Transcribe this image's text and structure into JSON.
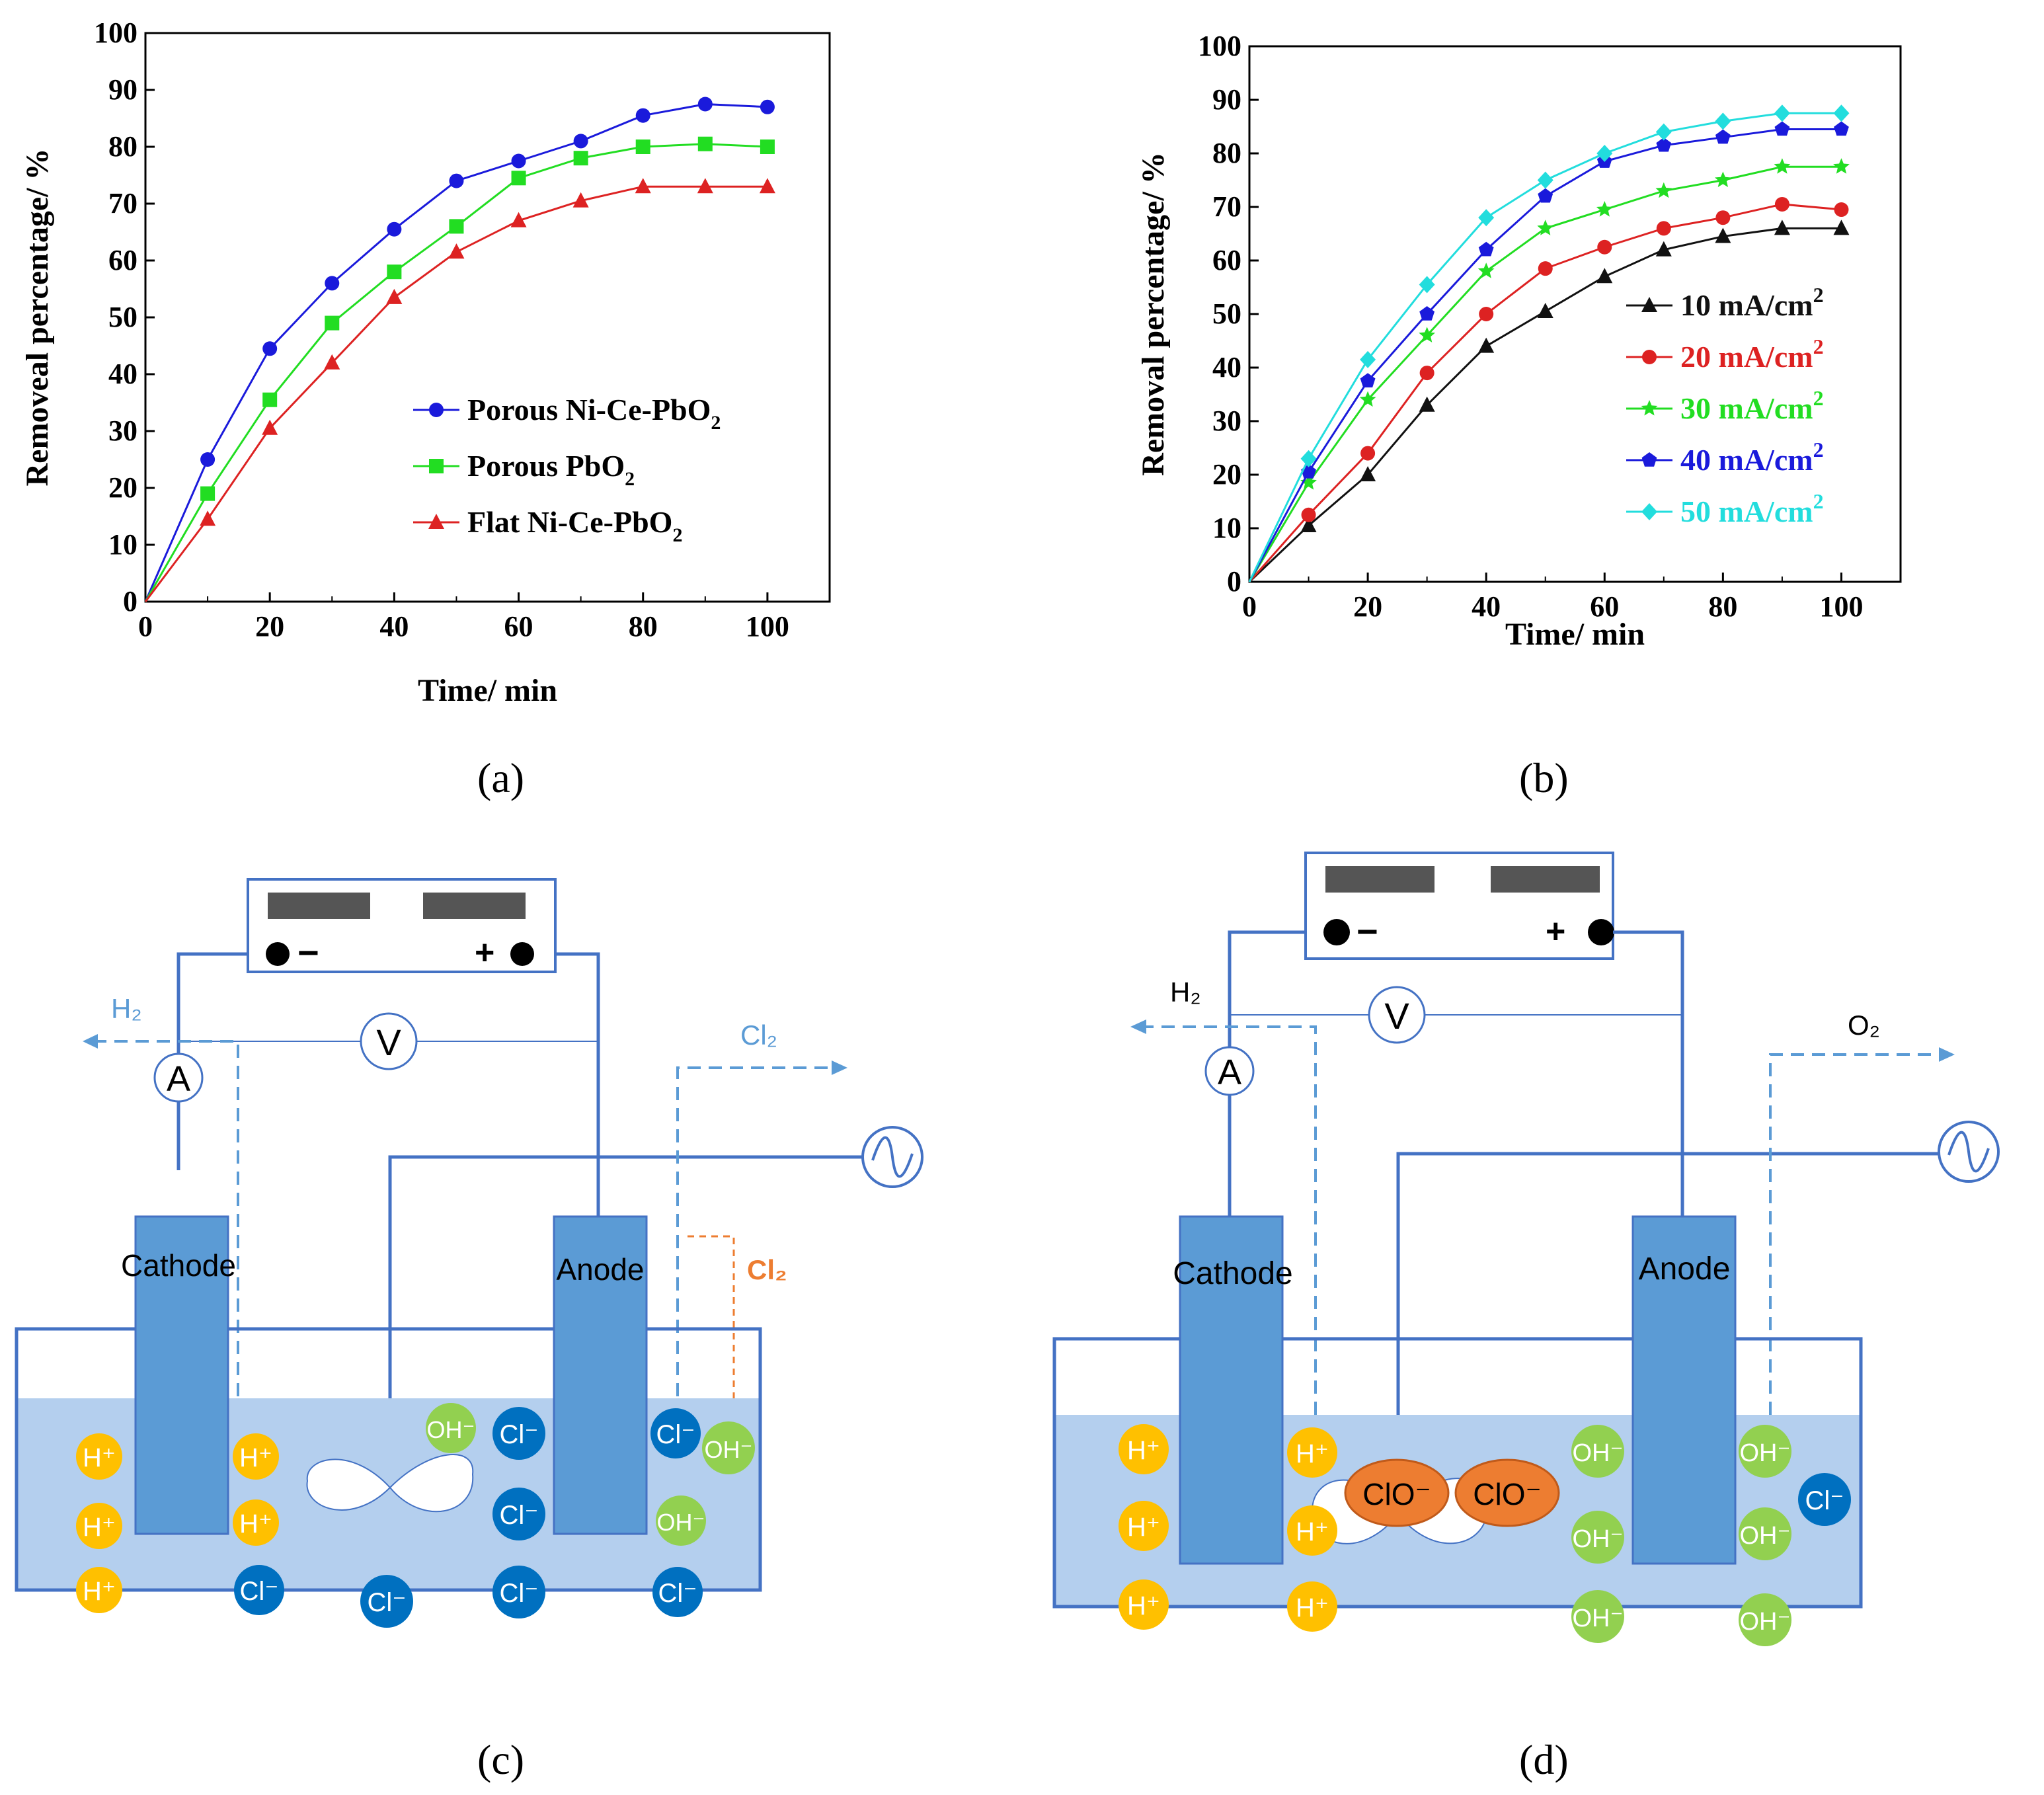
{
  "chart_data": [
    {
      "type": "line",
      "caption": "(a)",
      "xlabel": "Time/ min",
      "ylabel": "Removeal percentage/ %",
      "xlim": [
        0,
        110
      ],
      "ylim": [
        0,
        100
      ],
      "xticks": [
        0,
        20,
        40,
        60,
        80,
        100
      ],
      "yticks": [
        0,
        10,
        20,
        30,
        40,
        50,
        60,
        70,
        80,
        90,
        100
      ],
      "legend_placement": "bottom-right",
      "x": [
        0,
        10,
        20,
        30,
        40,
        50,
        60,
        70,
        80,
        90,
        100
      ],
      "series": [
        {
          "name": "Porous Ni-Ce-PbO2",
          "name_main": "Porous Ni-Ce-PbO",
          "name_sub": "2",
          "color": "#1a1adb",
          "marker": "circle",
          "values": [
            0,
            25,
            44.5,
            56,
            65.5,
            74,
            77.5,
            81,
            85.5,
            87.5,
            87
          ]
        },
        {
          "name": "Porous PbO2",
          "name_main": "Porous PbO",
          "name_sub": "2",
          "color": "#22dd22",
          "marker": "square",
          "values": [
            0,
            19,
            35.5,
            49,
            58,
            66,
            74.5,
            78,
            80,
            80.5,
            80
          ]
        },
        {
          "name": "Flat Ni-Ce-PbO2",
          "name_main": "Flat Ni-Ce-PbO",
          "name_sub": "2",
          "color": "#dd2222",
          "marker": "triangle",
          "values": [
            0,
            14.5,
            30.5,
            42,
            53.5,
            61.5,
            67,
            70.5,
            73,
            73,
            73
          ]
        }
      ]
    },
    {
      "type": "line",
      "caption": "(b)",
      "xlabel": "Time/ min",
      "ylabel": "Removal percentage/ %",
      "xlim": [
        0,
        110
      ],
      "ylim": [
        0,
        100
      ],
      "xticks": [
        0,
        20,
        40,
        60,
        80,
        100
      ],
      "yticks": [
        0,
        10,
        20,
        30,
        40,
        50,
        60,
        70,
        80,
        90,
        100
      ],
      "legend_placement": "center-right",
      "x": [
        0,
        10,
        20,
        30,
        40,
        50,
        60,
        70,
        80,
        90,
        100
      ],
      "series": [
        {
          "name": "10 mA/cm2",
          "name_main": "10 mA/cm",
          "name_sup": "2",
          "color": "#111111",
          "marker": "triangle",
          "values": [
            0,
            10.5,
            20,
            33,
            44,
            50.5,
            57,
            62,
            64.5,
            66,
            66
          ]
        },
        {
          "name": "20 mA/cm2",
          "name_main": "20 mA/cm",
          "name_sup": "2",
          "color": "#dd2222",
          "marker": "circle",
          "values": [
            0,
            12.5,
            24,
            39,
            50,
            58.5,
            62.5,
            66,
            68,
            70.5,
            69.5
          ]
        },
        {
          "name": "30 mA/cm2",
          "name_main": "30 mA/cm",
          "name_sup": "2",
          "color": "#22dd22",
          "marker": "star",
          "values": [
            0,
            18.5,
            34,
            46,
            58,
            66,
            69.5,
            73,
            75,
            77.5,
            77.5
          ]
        },
        {
          "name": "40 mA/cm2",
          "name_main": "40 mA/cm",
          "name_sup": "2",
          "color": "#1a1adb",
          "marker": "pentagon",
          "values": [
            0,
            20.5,
            37.5,
            50,
            62,
            72,
            78.5,
            81.5,
            83,
            84.5,
            84.5
          ]
        },
        {
          "name": "50 mA/cm2",
          "name_main": "50 mA/cm",
          "name_sup": "2",
          "color": "#22dddd",
          "marker": "diamond",
          "values": [
            0,
            23,
            41.5,
            55.5,
            68,
            75,
            80,
            84,
            86,
            87.5,
            87.5
          ]
        }
      ]
    }
  ],
  "diagram_c": {
    "caption": "(c)",
    "cathode_label": "Cathode",
    "anode_label": "Anode",
    "voltmeter": "V",
    "ammeter": "A",
    "gas_left": "H₂",
    "gas_right": "Cl₂",
    "gas_inner": "Cl₂",
    "minus": "−",
    "plus": "+",
    "ion_h": "H⁺",
    "ion_cl": "Cl⁻",
    "ion_oh": "OH⁻",
    "colors": {
      "electrode": "#5b9bd5",
      "solution": "#b4cfee",
      "wire": "#4472c4",
      "h_ion": "#ffc000",
      "cl_ion": "#0070c0",
      "oh_ion": "#92d050",
      "clo_ion": "#ed7d31",
      "inner_gas": "#ed7d31"
    }
  },
  "diagram_d": {
    "caption": "(d)",
    "cathode_label": "Cathode",
    "anode_label": "Anode",
    "voltmeter": "V",
    "ammeter": "A",
    "gas_left": "H₂",
    "gas_right": "O₂",
    "minus": "−",
    "plus": "+",
    "ion_h": "H⁺",
    "ion_cl": "Cl⁻",
    "ion_oh": "OH⁻",
    "ion_clo": "ClO⁻"
  }
}
